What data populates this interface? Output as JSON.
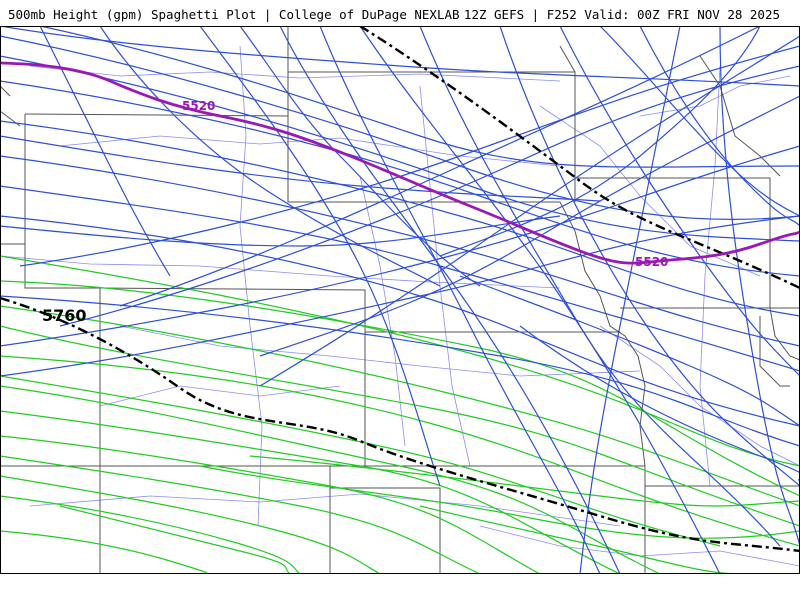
{
  "header": {
    "title_left": "500mb Height (gpm) Spaghetti Plot | College of DuPage NEXLAB",
    "title_right": "12Z GEFS | F252 Valid: 00Z FRI NOV 28 2025"
  },
  "contours": {
    "label_5520_a": "5520",
    "label_5520_b": "5520",
    "label_5760": "5760"
  },
  "colors": {
    "member_low": "#2f4fd8",
    "member_high": "#22cc22",
    "mean_5520": "#9a19b5",
    "climo_line": "#000000",
    "state_borders": "#555555",
    "roads": "#8c8cf0"
  }
}
